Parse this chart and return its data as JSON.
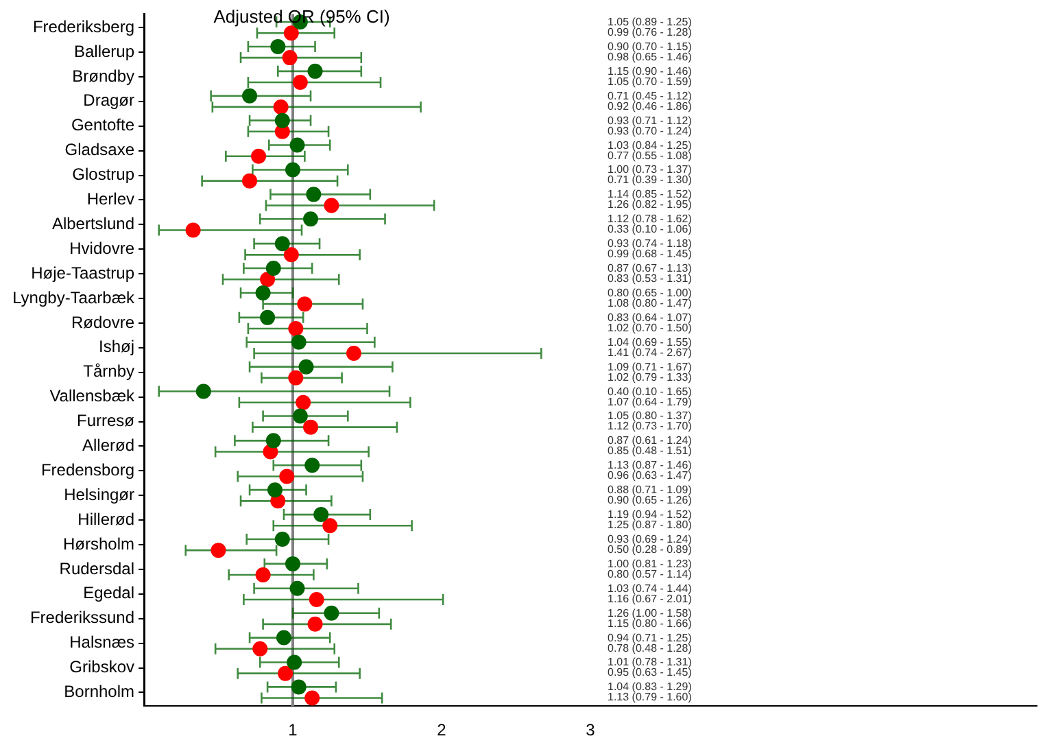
{
  "chart_data": {
    "type": "scatter",
    "orientation": "horizontal",
    "title": "Adjusted OR (95% CI)",
    "categories": [
      "Frederiksberg",
      "Ballerup",
      "Brøndby",
      "Dragør",
      "Gentofte",
      "Gladsaxe",
      "Glostrup",
      "Herlev",
      "Albertslund",
      "Hvidovre",
      "Høje-Taastrup",
      "Lyngby-Taarbæk",
      "Rødovre",
      "Ishøj",
      "Tårnby",
      "Vallensbæk",
      "Furresø",
      "Allerød",
      "Fredensborg",
      "Helsingør",
      "Hillerød",
      "Hørsholm",
      "Rudersdal",
      "Egedal",
      "Frederikssund",
      "Halsnæs",
      "Gribskov",
      "Bornholm"
    ],
    "series": [
      {
        "color": "#006400",
        "values": [
          1.05,
          0.9,
          1.15,
          0.71,
          0.93,
          1.03,
          1.0,
          1.14,
          1.12,
          0.93,
          0.87,
          0.8,
          0.83,
          1.04,
          1.09,
          0.4,
          1.05,
          0.87,
          1.13,
          0.88,
          1.19,
          0.93,
          1.0,
          1.03,
          1.26,
          0.94,
          1.01,
          1.04
        ],
        "errors": [
          [
            0.89,
            1.25
          ],
          [
            0.7,
            1.15
          ],
          [
            0.9,
            1.46
          ],
          [
            0.45,
            1.12
          ],
          [
            0.71,
            1.12
          ],
          [
            0.84,
            1.25
          ],
          [
            0.73,
            1.37
          ],
          [
            0.85,
            1.52
          ],
          [
            0.78,
            1.62
          ],
          [
            0.74,
            1.18
          ],
          [
            0.67,
            1.13
          ],
          [
            0.65,
            1.0
          ],
          [
            0.64,
            1.07
          ],
          [
            0.69,
            1.55
          ],
          [
            0.71,
            1.67
          ],
          [
            0.1,
            1.65
          ],
          [
            0.8,
            1.37
          ],
          [
            0.61,
            1.24
          ],
          [
            0.87,
            1.46
          ],
          [
            0.71,
            1.09
          ],
          [
            0.94,
            1.52
          ],
          [
            0.69,
            1.24
          ],
          [
            0.81,
            1.23
          ],
          [
            0.74,
            1.44
          ],
          [
            1.0,
            1.58
          ],
          [
            0.71,
            1.25
          ],
          [
            0.78,
            1.31
          ],
          [
            0.83,
            1.29
          ]
        ]
      },
      {
        "color": "#ff0000",
        "values": [
          0.99,
          0.98,
          1.05,
          0.92,
          0.93,
          0.77,
          0.71,
          1.26,
          0.33,
          0.99,
          0.83,
          1.08,
          1.02,
          1.41,
          1.02,
          1.07,
          1.12,
          0.85,
          0.96,
          0.9,
          1.25,
          0.5,
          0.8,
          1.16,
          1.15,
          0.78,
          0.95,
          1.13
        ],
        "errors": [
          [
            0.76,
            1.28
          ],
          [
            0.65,
            1.46
          ],
          [
            0.7,
            1.59
          ],
          [
            0.46,
            1.86
          ],
          [
            0.7,
            1.24
          ],
          [
            0.55,
            1.08
          ],
          [
            0.39,
            1.3
          ],
          [
            0.82,
            1.95
          ],
          [
            0.1,
            1.06
          ],
          [
            0.68,
            1.45
          ],
          [
            0.53,
            1.31
          ],
          [
            0.8,
            1.47
          ],
          [
            0.7,
            1.5
          ],
          [
            0.74,
            2.67
          ],
          [
            0.79,
            1.33
          ],
          [
            0.64,
            1.79
          ],
          [
            0.73,
            1.7
          ],
          [
            0.48,
            1.51
          ],
          [
            0.63,
            1.47
          ],
          [
            0.65,
            1.26
          ],
          [
            0.87,
            1.8
          ],
          [
            0.28,
            0.89
          ],
          [
            0.57,
            1.14
          ],
          [
            0.67,
            2.01
          ],
          [
            0.8,
            1.66
          ],
          [
            0.48,
            1.28
          ],
          [
            0.63,
            1.45
          ],
          [
            0.79,
            1.6
          ]
        ]
      }
    ],
    "annotations": [
      "1.05 (0.89 - 1.25)",
      "0.99 (0.76 - 1.28)",
      "0.90 (0.70 - 1.15)",
      "0.98 (0.65 - 1.46)",
      "1.15 (0.90 - 1.46)",
      "1.05 (0.70 - 1.59)",
      "0.71 (0.45 - 1.12)",
      "0.92 (0.46 - 1.86)",
      "0.93 (0.71 - 1.12)",
      "0.93 (0.70 - 1.24)",
      "1.03 (0.84 - 1.25)",
      "0.77 (0.55 - 1.08)",
      "1.00 (0.73 - 1.37)",
      "0.71 (0.39 - 1.30)",
      "1.14 (0.85 - 1.52)",
      "1.26 (0.82 - 1.95)",
      "1.12 (0.78 - 1.62)",
      "0.33 (0.10 - 1.06)",
      "0.93 (0.74 - 1.18)",
      "0.99 (0.68 - 1.45)",
      "0.87 (0.67 - 1.13)",
      "0.83 (0.53 - 1.31)",
      "0.80 (0.65 - 1.00)",
      "1.08 (0.80 - 1.47)",
      "0.83 (0.64 - 1.07)",
      "1.02 (0.70 - 1.50)",
      "1.04 (0.69 - 1.55)",
      "1.41 (0.74 - 2.67)",
      "1.09 (0.71 - 1.67)",
      "1.02 (0.79 - 1.33)",
      "0.40 (0.10 - 1.65)",
      "1.07 (0.64 - 1.79)",
      "1.05 (0.80 - 1.37)",
      "1.12 (0.73 - 1.70)",
      "0.87 (0.61 - 1.24)",
      "0.85 (0.48 - 1.51)",
      "1.13 (0.87 - 1.46)",
      "0.96 (0.63 - 1.47)",
      "0.88 (0.71 - 1.09)",
      "0.90 (0.65 - 1.26)",
      "1.19 (0.94 - 1.52)",
      "1.25 (0.87 - 1.80)",
      "0.93 (0.69 - 1.24)",
      "0.50 (0.28 - 0.89)",
      "1.00 (0.81 - 1.23)",
      "0.80 (0.57 - 1.14)",
      "1.03 (0.74 - 1.44)",
      "1.16 (0.67 - 2.01)",
      "1.26 (1.00 - 1.58)",
      "1.15 (0.80 - 1.66)",
      "0.94 (0.71 - 1.25)",
      "0.78 (0.48 - 1.28)",
      "1.01 (0.78 - 1.31)",
      "0.95 (0.63 - 1.45)",
      "1.04 (0.83 - 1.29)",
      "1.13 (0.79 - 1.60)"
    ],
    "xlim": [
      0,
      6
    ],
    "xticks": [
      1,
      2,
      3
    ],
    "ref_lines": [
      {
        "axis": "x",
        "value": 1,
        "color": "#808080"
      }
    ],
    "marker": "circle",
    "grid": false,
    "legend": false
  }
}
